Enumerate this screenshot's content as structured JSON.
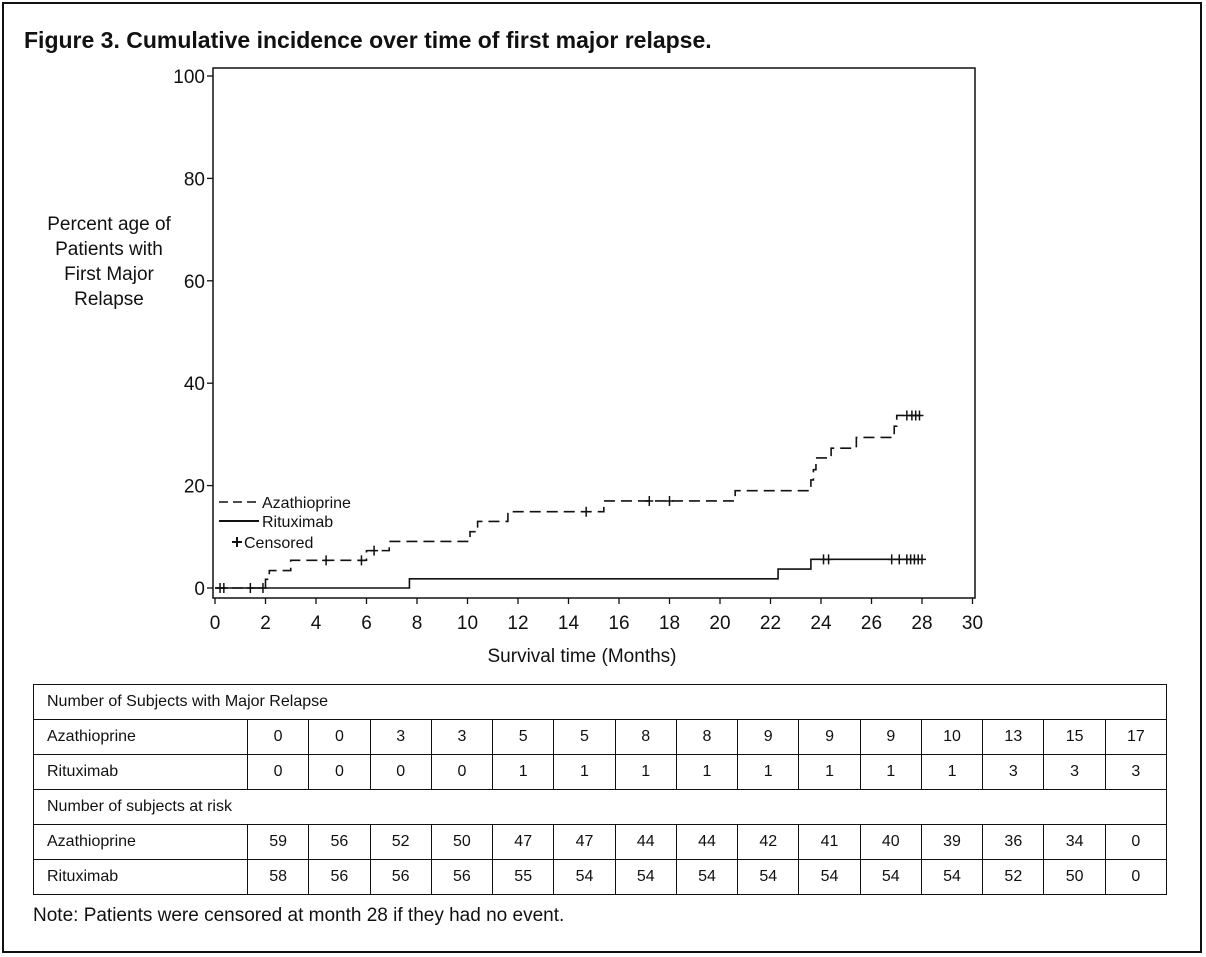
{
  "title": "Figure 3. Cumulative incidence over time of first major relapse.",
  "note": "Note: Patients were censored at month 28 if they had no event.",
  "chart_data": {
    "type": "line",
    "subtype": "step",
    "title": "Figure 3. Cumulative incidence over time of first major relapse.",
    "ylabel": [
      "Percent age of",
      "Patients with",
      "First Major",
      "Relapse"
    ],
    "xlabel": "Survival time (Months)",
    "xlim": [
      0,
      30
    ],
    "ylim": [
      0,
      100
    ],
    "xticks": [
      "0",
      "2",
      "4",
      "6",
      "8",
      "10",
      "12",
      "14",
      "16",
      "18",
      "20",
      "22",
      "24",
      "26",
      "28",
      "30"
    ],
    "yticks": [
      "0",
      "20",
      "40",
      "60",
      "80",
      "100"
    ],
    "grid": false,
    "legend": {
      "position": "lower-left",
      "entries": [
        {
          "label": "Azathioprine",
          "style": "dashed"
        },
        {
          "label": "Rituximab",
          "style": "solid"
        },
        {
          "label": "Censored",
          "style": "plus-marker"
        }
      ]
    },
    "series": [
      {
        "name": "Azathioprine",
        "style": "dashed",
        "steps": [
          [
            0,
            0
          ],
          [
            2.0,
            1.7
          ],
          [
            2.15,
            3.4
          ],
          [
            2.35,
            3.4
          ],
          [
            3.0,
            5.4
          ],
          [
            6.0,
            7.3
          ],
          [
            6.9,
            9.1
          ],
          [
            10.1,
            11.0
          ],
          [
            10.4,
            13.0
          ],
          [
            11.6,
            14.9
          ],
          [
            15.4,
            17.0
          ],
          [
            20.6,
            19.0
          ],
          [
            23.6,
            21.1
          ],
          [
            23.7,
            23.1
          ],
          [
            23.8,
            25.4
          ],
          [
            24.4,
            27.3
          ],
          [
            25.4,
            29.4
          ],
          [
            26.9,
            31.6
          ],
          [
            27.0,
            33.7
          ],
          [
            28.0,
            33.7
          ]
        ],
        "censored": [
          [
            0.2,
            0
          ],
          [
            0.35,
            0
          ],
          [
            1.4,
            0
          ],
          [
            1.9,
            0
          ],
          [
            4.4,
            5.4
          ],
          [
            5.8,
            5.4
          ],
          [
            6.3,
            7.3
          ],
          [
            14.7,
            14.9
          ],
          [
            17.2,
            17.0
          ],
          [
            18.0,
            17.0
          ],
          [
            27.4,
            33.7
          ],
          [
            27.6,
            33.7
          ],
          [
            27.75,
            33.7
          ],
          [
            27.9,
            33.7
          ]
        ]
      },
      {
        "name": "Rituximab",
        "style": "solid",
        "steps": [
          [
            0,
            0
          ],
          [
            7.7,
            1.8
          ],
          [
            22.3,
            3.7
          ],
          [
            23.6,
            5.6
          ],
          [
            28.0,
            5.6
          ]
        ],
        "censored": [
          [
            24.1,
            5.6
          ],
          [
            24.3,
            5.6
          ],
          [
            26.8,
            5.6
          ],
          [
            27.1,
            5.6
          ],
          [
            27.4,
            5.6
          ],
          [
            27.55,
            5.6
          ],
          [
            27.7,
            5.6
          ],
          [
            27.85,
            5.6
          ],
          [
            28.0,
            5.6
          ]
        ]
      }
    ]
  },
  "table": {
    "relapse_header": "Number of Subjects with Major Relapse",
    "relapse_rows": [
      {
        "name": "Azathioprine",
        "values": [
          "0",
          "0",
          "3",
          "3",
          "5",
          "5",
          "8",
          "8",
          "9",
          "9",
          "9",
          "10",
          "13",
          "15",
          "17"
        ]
      },
      {
        "name": "Rituximab",
        "values": [
          "0",
          "0",
          "0",
          "0",
          "1",
          "1",
          "1",
          "1",
          "1",
          "1",
          "1",
          "1",
          "3",
          "3",
          "3"
        ]
      }
    ],
    "risk_header": "Number of subjects at risk",
    "risk_rows": [
      {
        "name": "Azathioprine",
        "values": [
          "59",
          "56",
          "52",
          "50",
          "47",
          "47",
          "44",
          "44",
          "42",
          "41",
          "40",
          "39",
          "36",
          "34",
          "0"
        ]
      },
      {
        "name": "Rituximab",
        "values": [
          "58",
          "56",
          "56",
          "56",
          "55",
          "54",
          "54",
          "54",
          "54",
          "54",
          "54",
          "54",
          "52",
          "50",
          "0"
        ]
      }
    ]
  }
}
